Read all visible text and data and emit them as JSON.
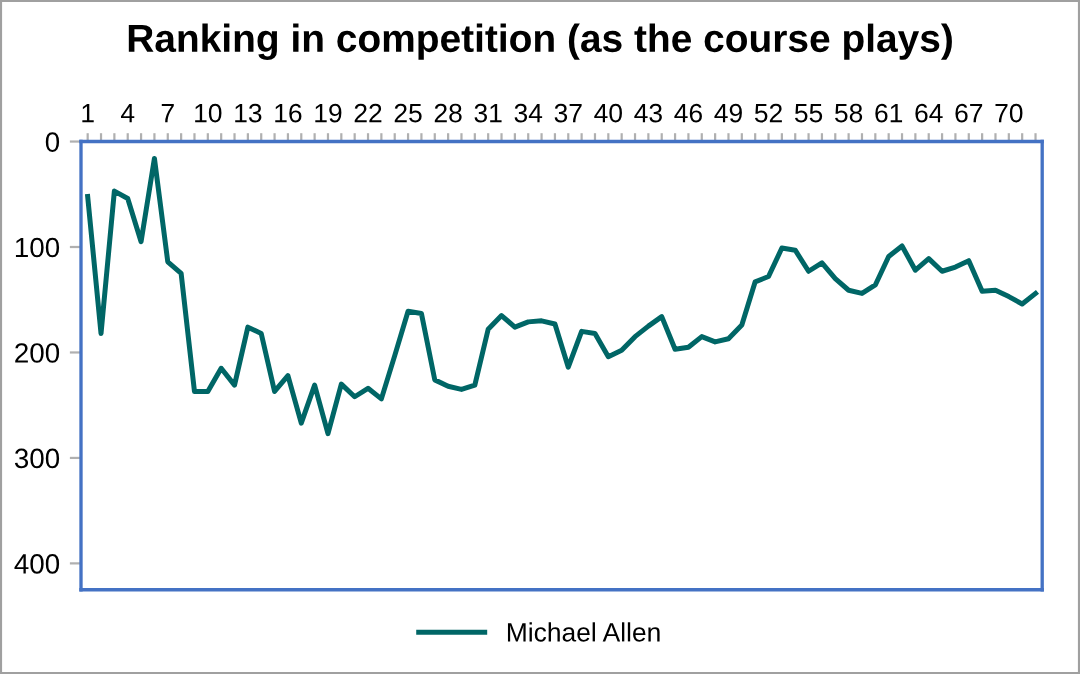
{
  "chart_data": {
    "type": "line",
    "title": "Ranking in competition (as the course plays)",
    "categories": [
      "1",
      null,
      null,
      "4",
      null,
      null,
      "7",
      null,
      null,
      "10",
      null,
      null,
      "13",
      null,
      null,
      "16",
      null,
      null,
      "19",
      null,
      null,
      "22",
      null,
      null,
      "25",
      null,
      null,
      "28",
      null,
      null,
      "31",
      null,
      null,
      "34",
      null,
      null,
      "37",
      null,
      null,
      "40",
      null,
      null,
      "43",
      null,
      null,
      "46",
      null,
      null,
      "49",
      null,
      null,
      "52",
      null,
      null,
      "55",
      null,
      null,
      "58",
      null,
      null,
      "61",
      null,
      null,
      "64",
      null,
      null,
      "67",
      null,
      null,
      "70",
      null,
      null
    ],
    "series": [
      {
        "name": "Michael Allen",
        "color": "#006666",
        "values": [
          52,
          182,
          47,
          54,
          95,
          16,
          114,
          125,
          237,
          237,
          215,
          231,
          176,
          182,
          237,
          222,
          267,
          231,
          277,
          230,
          242,
          234,
          244,
          203,
          161,
          163,
          226,
          232,
          235,
          231,
          178,
          165,
          176,
          171,
          170,
          173,
          214,
          180,
          182,
          204,
          198,
          185,
          175,
          166,
          197,
          195,
          185,
          190,
          187,
          174,
          133,
          128,
          101,
          103,
          123,
          115,
          130,
          141,
          144,
          136,
          109,
          99,
          122,
          111,
          123,
          119,
          113,
          142,
          141,
          147,
          154,
          144
        ]
      }
    ],
    "ylim": [
      425,
      0
    ],
    "yticks": [
      0,
      100,
      200,
      300,
      400
    ],
    "grid": false,
    "legend": "bottom",
    "marker": "none",
    "line_style": "solid"
  }
}
